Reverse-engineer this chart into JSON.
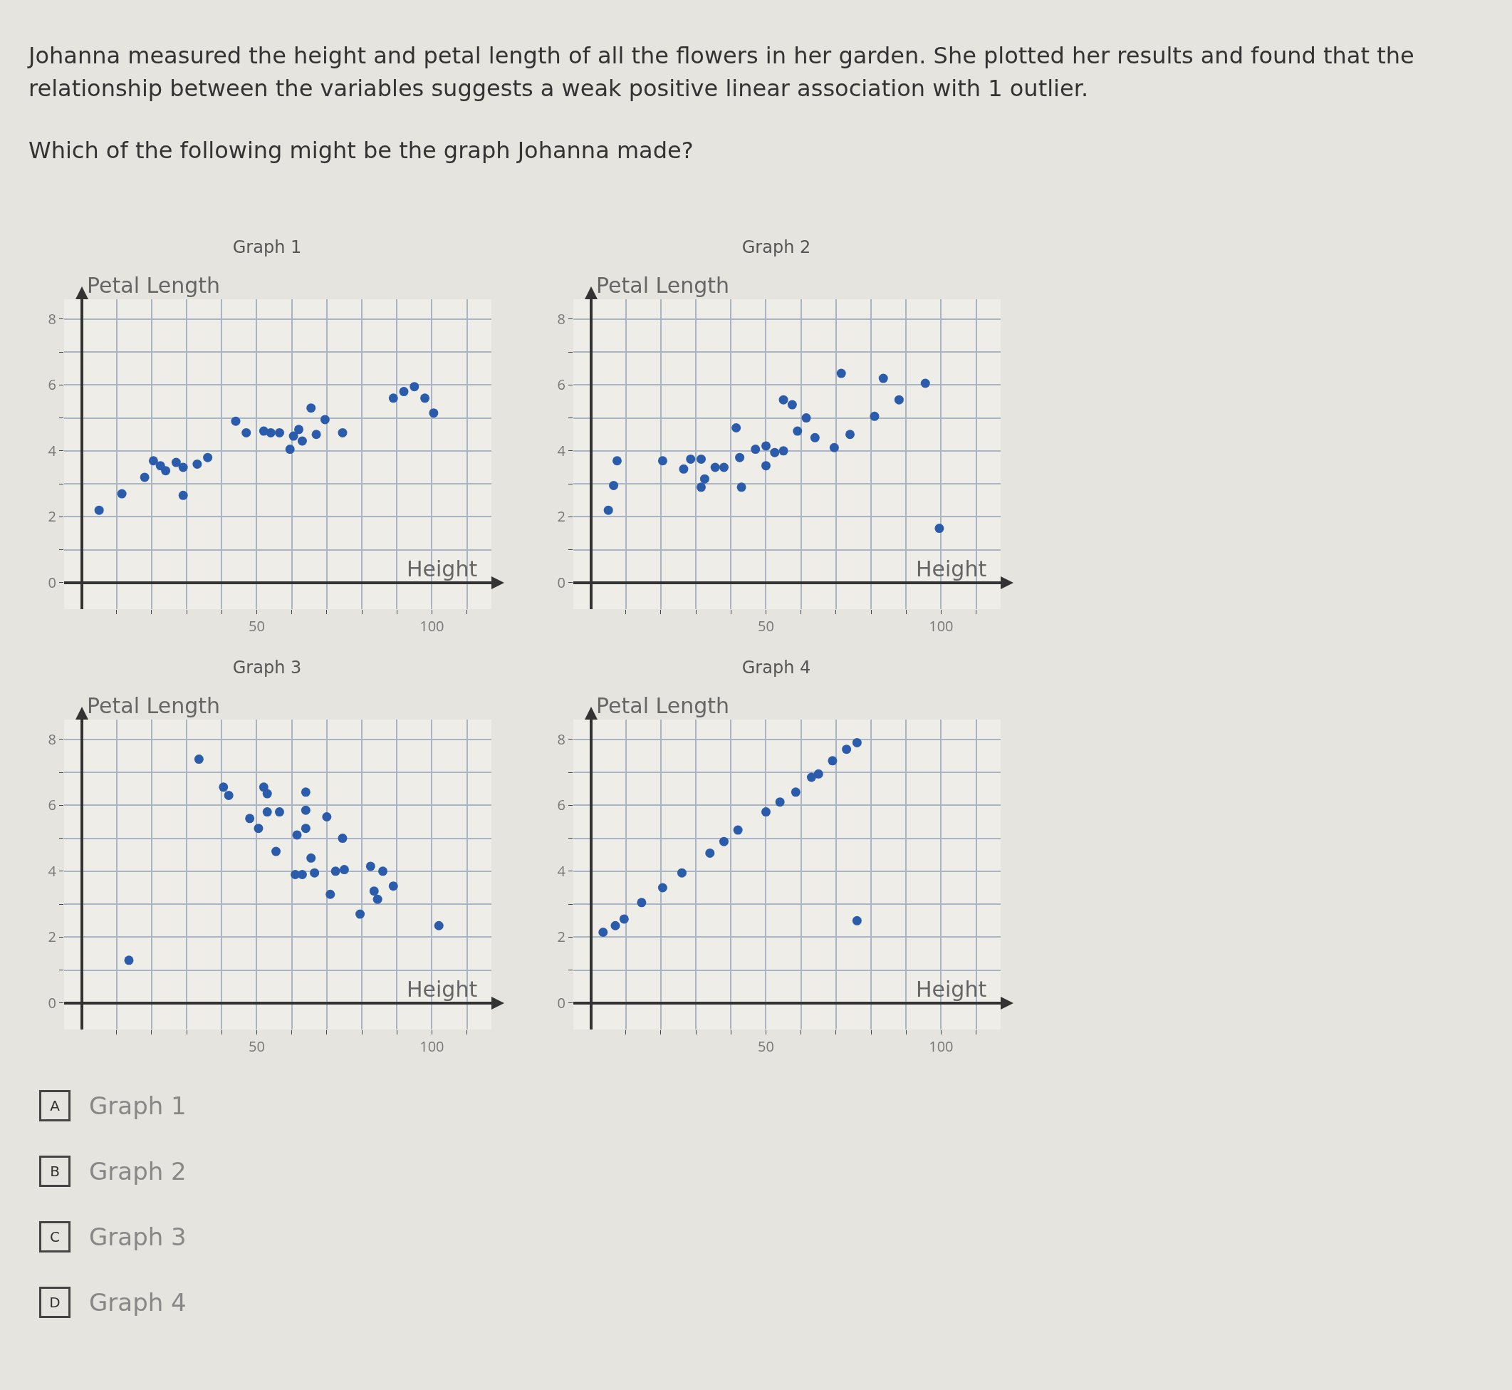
{
  "chart_data": [
    {
      "type": "other",
      "annotations": [
        "Johanna measured the height and petal length of all the flowers in her garden. She plotted her results and found that the relationship between the variables suggests a weak positive linear association with 1 outlier.",
        "Which of the following might be the graph Johanna made?"
      ]
    },
    {
      "type": "scatter",
      "title": "Graph 1",
      "xlabel": "Height",
      "ylabel": "Petal Length",
      "grid": true,
      "marker": "circle",
      "color": "#2b5cab",
      "xlim": [
        -5,
        117
      ],
      "ylim": [
        -0.8,
        8.6
      ],
      "xticks": [
        {
          "value": 10,
          "label": null
        },
        {
          "value": 20,
          "label": null
        },
        {
          "value": 30,
          "label": null
        },
        {
          "value": 40,
          "label": null
        },
        {
          "value": 50,
          "label": "50"
        },
        {
          "value": 60,
          "label": null
        },
        {
          "value": 70,
          "label": null
        },
        {
          "value": 80,
          "label": null
        },
        {
          "value": 90,
          "label": null
        },
        {
          "value": 100,
          "label": "100"
        },
        {
          "value": 110,
          "label": null
        }
      ],
      "yticks": [
        0,
        {
          "value": 1,
          "label": null
        },
        2,
        {
          "value": 3,
          "label": null
        },
        4,
        {
          "value": 5,
          "label": null
        },
        6,
        {
          "value": 7,
          "label": null
        },
        8
      ],
      "x": [
        5,
        11.5,
        18,
        20.5,
        22.5,
        24,
        27,
        29,
        29,
        33,
        36,
        44,
        47,
        52,
        54,
        56.5,
        59.5,
        60.5,
        62,
        63,
        65.5,
        67,
        69.5,
        74.5,
        89,
        92,
        95,
        98,
        100.5
      ],
      "values": [
        2.2,
        2.7,
        3.2,
        3.7,
        3.55,
        3.4,
        3.65,
        3.5,
        2.65,
        3.6,
        3.8,
        4.9,
        4.55,
        4.6,
        4.55,
        4.55,
        4.05,
        4.45,
        4.65,
        4.3,
        5.3,
        4.5,
        4.95,
        4.55,
        5.6,
        5.8,
        5.95,
        5.6,
        5.15
      ]
    },
    {
      "type": "scatter",
      "title": "Graph 2",
      "xlabel": "Height",
      "ylabel": "Petal Length",
      "grid": true,
      "marker": "circle",
      "color": "#2b5cab",
      "xlim": [
        -5,
        117
      ],
      "ylim": [
        -0.8,
        8.6
      ],
      "xticks": [
        {
          "value": 10,
          "label": null
        },
        {
          "value": 20,
          "label": null
        },
        {
          "value": 30,
          "label": null
        },
        {
          "value": 40,
          "label": null
        },
        {
          "value": 50,
          "label": "50"
        },
        {
          "value": 60,
          "label": null
        },
        {
          "value": 70,
          "label": null
        },
        {
          "value": 80,
          "label": null
        },
        {
          "value": 90,
          "label": null
        },
        {
          "value": 100,
          "label": "100"
        },
        {
          "value": 110,
          "label": null
        }
      ],
      "yticks": [
        0,
        {
          "value": 1,
          "label": null
        },
        2,
        {
          "value": 3,
          "label": null
        },
        4,
        {
          "value": 5,
          "label": null
        },
        6,
        {
          "value": 7,
          "label": null
        },
        8
      ],
      "x": [
        5,
        6.5,
        7.5,
        20.5,
        26.5,
        28.5,
        31.5,
        31.5,
        32.5,
        35.5,
        38,
        41.5,
        42.5,
        43,
        47,
        50,
        50,
        52.5,
        55,
        55,
        57.5,
        59,
        61.5,
        64,
        69.5,
        71.5,
        74,
        81,
        83.5,
        88,
        95.5,
        99.5
      ],
      "values": [
        2.2,
        2.95,
        3.7,
        3.7,
        3.45,
        3.75,
        3.75,
        2.9,
        3.15,
        3.5,
        3.5,
        4.7,
        3.8,
        2.9,
        4.05,
        4.15,
        3.55,
        3.95,
        4,
        5.55,
        5.4,
        4.6,
        5,
        4.4,
        4.1,
        6.35,
        4.5,
        5.05,
        6.2,
        5.55,
        6.05,
        1.65
      ]
    },
    {
      "type": "scatter",
      "title": "Graph 3",
      "xlabel": "Height",
      "ylabel": "Petal Length",
      "grid": true,
      "marker": "circle",
      "color": "#2b5cab",
      "xlim": [
        -5,
        117
      ],
      "ylim": [
        -0.8,
        8.6
      ],
      "xticks": [
        {
          "value": 10,
          "label": null
        },
        {
          "value": 20,
          "label": null
        },
        {
          "value": 30,
          "label": null
        },
        {
          "value": 40,
          "label": null
        },
        {
          "value": 50,
          "label": "50"
        },
        {
          "value": 60,
          "label": null
        },
        {
          "value": 70,
          "label": null
        },
        {
          "value": 80,
          "label": null
        },
        {
          "value": 90,
          "label": null
        },
        {
          "value": 100,
          "label": "100"
        },
        {
          "value": 110,
          "label": null
        }
      ],
      "yticks": [
        0,
        {
          "value": 1,
          "label": null
        },
        2,
        {
          "value": 3,
          "label": null
        },
        4,
        {
          "value": 5,
          "label": null
        },
        6,
        {
          "value": 7,
          "label": null
        },
        8
      ],
      "x": [
        13.5,
        33.5,
        40.5,
        42,
        52,
        53,
        53,
        56.5,
        48,
        50.5,
        55.5,
        64,
        64,
        64,
        61.5,
        70,
        74.5,
        65.5,
        61,
        63,
        66.5,
        72.5,
        75,
        71,
        82.5,
        86,
        83.5,
        84.5,
        89,
        79.5,
        102
      ],
      "values": [
        1.3,
        7.4,
        6.55,
        6.3,
        6.55,
        6.35,
        5.8,
        5.8,
        5.6,
        5.3,
        4.6,
        6.4,
        5.85,
        5.3,
        5.1,
        5.65,
        5,
        4.4,
        3.9,
        3.9,
        3.95,
        4,
        4.05,
        3.3,
        4.15,
        4,
        3.4,
        3.15,
        3.55,
        2.7,
        2.35
      ]
    },
    {
      "type": "scatter",
      "title": "Graph 4",
      "xlabel": "Height",
      "ylabel": "Petal Length",
      "grid": true,
      "marker": "circle",
      "color": "#2b5cab",
      "xlim": [
        -5,
        117
      ],
      "ylim": [
        -0.8,
        8.6
      ],
      "xticks": [
        {
          "value": 10,
          "label": null
        },
        {
          "value": 20,
          "label": null
        },
        {
          "value": 30,
          "label": null
        },
        {
          "value": 40,
          "label": null
        },
        {
          "value": 50,
          "label": "50"
        },
        {
          "value": 60,
          "label": null
        },
        {
          "value": 70,
          "label": null
        },
        {
          "value": 80,
          "label": null
        },
        {
          "value": 90,
          "label": null
        },
        {
          "value": 100,
          "label": "100"
        },
        {
          "value": 110,
          "label": null
        }
      ],
      "yticks": [
        0,
        {
          "value": 1,
          "label": null
        },
        2,
        {
          "value": 3,
          "label": null
        },
        4,
        {
          "value": 5,
          "label": null
        },
        6,
        {
          "value": 7,
          "label": null
        },
        8
      ],
      "x": [
        3.5,
        7,
        9.5,
        14.5,
        20.5,
        26,
        34,
        38,
        42,
        50,
        54,
        58.5,
        63,
        65,
        69,
        73,
        76,
        76
      ],
      "values": [
        2.15,
        2.35,
        2.55,
        3.05,
        3.5,
        3.95,
        4.55,
        4.9,
        5.25,
        5.8,
        6.1,
        6.4,
        6.85,
        6.95,
        7.35,
        7.7,
        7.9,
        2.5
      ]
    },
    {
      "type": "other",
      "annotations": [
        "A",
        "Graph 1",
        "B",
        "Graph 2",
        "C",
        "Graph 3",
        "D",
        "Graph 4"
      ]
    }
  ]
}
